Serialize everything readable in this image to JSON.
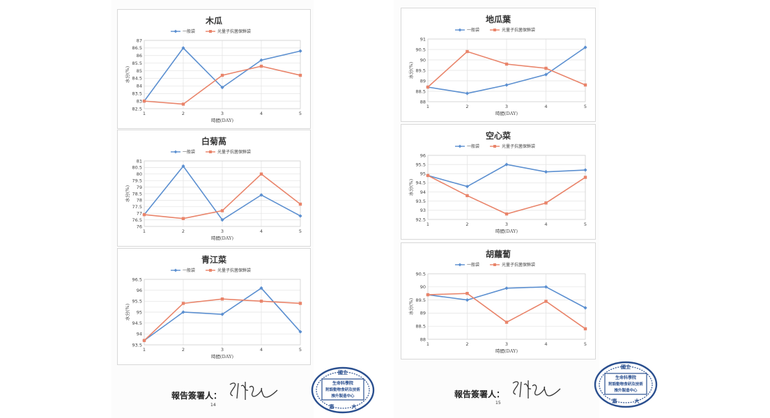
{
  "colors": {
    "series1": "#5b8fd0",
    "series2": "#e9846a",
    "seal": "#2a4f8f"
  },
  "legend": {
    "series1": "一般袋",
    "series2": "光量子抗菌保鮮袋"
  },
  "axis": {
    "ylabel": "水分(%)",
    "xlabel": "時間(DAY)"
  },
  "footer": {
    "signer_label": "報告簽署人：",
    "page_left": "14",
    "page_right": "15",
    "seal": {
      "top": "國立",
      "line1": "生命科學院",
      "line2": "附設動物食研及技術",
      "line3": "推升製造中心",
      "bottom_left": "嘉",
      "bottom_right": "大"
    }
  },
  "chart_data": [
    {
      "type": "line",
      "title": "木瓜",
      "x": [
        1,
        2,
        3,
        4,
        5
      ],
      "ylim": [
        82.5,
        87
      ],
      "yticks": [
        "82.5",
        "83",
        "83.5",
        "84",
        "84.5",
        "85",
        "85.5",
        "86",
        "86.5",
        "87"
      ],
      "series": [
        {
          "name": "一般袋",
          "values": [
            83.0,
            86.5,
            83.9,
            85.7,
            86.3
          ]
        },
        {
          "name": "光量子抗菌保鮮袋",
          "values": [
            83.0,
            82.8,
            84.7,
            85.3,
            84.7
          ]
        }
      ]
    },
    {
      "type": "line",
      "title": "白菊萵",
      "x": [
        1,
        2,
        3,
        4,
        5
      ],
      "ylim": [
        76,
        81
      ],
      "yticks": [
        "76",
        "76.5",
        "77",
        "77.5",
        "78",
        "78.5",
        "79",
        "79.5",
        "80",
        "80.5",
        "81"
      ],
      "series": [
        {
          "name": "一般袋",
          "values": [
            76.9,
            80.6,
            76.5,
            78.4,
            76.8
          ]
        },
        {
          "name": "光量子抗菌保鮮袋",
          "values": [
            76.9,
            76.6,
            77.2,
            80.0,
            77.7
          ]
        }
      ]
    },
    {
      "type": "line",
      "title": "青江菜",
      "x": [
        1,
        2,
        3,
        4,
        5
      ],
      "ylim": [
        93.5,
        96.5
      ],
      "yticks": [
        "93.5",
        "94",
        "94.5",
        "95",
        "95.5",
        "96",
        "96.5"
      ],
      "series": [
        {
          "name": "一般袋",
          "values": [
            93.7,
            95.0,
            94.9,
            96.1,
            94.1
          ]
        },
        {
          "name": "光量子抗菌保鮮袋",
          "values": [
            93.7,
            95.4,
            95.6,
            95.5,
            95.4
          ]
        }
      ]
    },
    {
      "type": "line",
      "title": "地瓜葉",
      "x": [
        1,
        2,
        3,
        4,
        5
      ],
      "ylim": [
        88,
        91
      ],
      "yticks": [
        "88",
        "88.5",
        "89",
        "89.5",
        "90",
        "90.5",
        "91"
      ],
      "series": [
        {
          "name": "一般袋",
          "values": [
            88.7,
            88.4,
            88.8,
            89.3,
            90.6
          ]
        },
        {
          "name": "光量子抗菌保鮮袋",
          "values": [
            88.7,
            90.4,
            89.8,
            89.6,
            88.8
          ]
        }
      ]
    },
    {
      "type": "line",
      "title": "空心菜",
      "x": [
        1,
        2,
        3,
        4,
        5
      ],
      "ylim": [
        92.5,
        96
      ],
      "yticks": [
        "92.5",
        "93",
        "93.5",
        "94",
        "94.5",
        "95",
        "95.5",
        "96"
      ],
      "series": [
        {
          "name": "一般袋",
          "values": [
            94.9,
            94.3,
            95.5,
            95.1,
            95.2
          ]
        },
        {
          "name": "光量子抗菌保鮮袋",
          "values": [
            94.9,
            93.8,
            92.8,
            93.4,
            94.8
          ]
        }
      ]
    },
    {
      "type": "line",
      "title": "胡蘿蔔",
      "x": [
        1,
        2,
        3,
        4,
        5
      ],
      "ylim": [
        88,
        90.5
      ],
      "yticks": [
        "88",
        "88.5",
        "89",
        "89.5",
        "90",
        "90.5"
      ],
      "series": [
        {
          "name": "一般袋",
          "values": [
            89.7,
            89.5,
            89.95,
            90.0,
            89.2
          ]
        },
        {
          "name": "光量子抗菌保鮮袋",
          "values": [
            89.7,
            89.75,
            88.65,
            89.45,
            88.4
          ]
        }
      ]
    }
  ]
}
